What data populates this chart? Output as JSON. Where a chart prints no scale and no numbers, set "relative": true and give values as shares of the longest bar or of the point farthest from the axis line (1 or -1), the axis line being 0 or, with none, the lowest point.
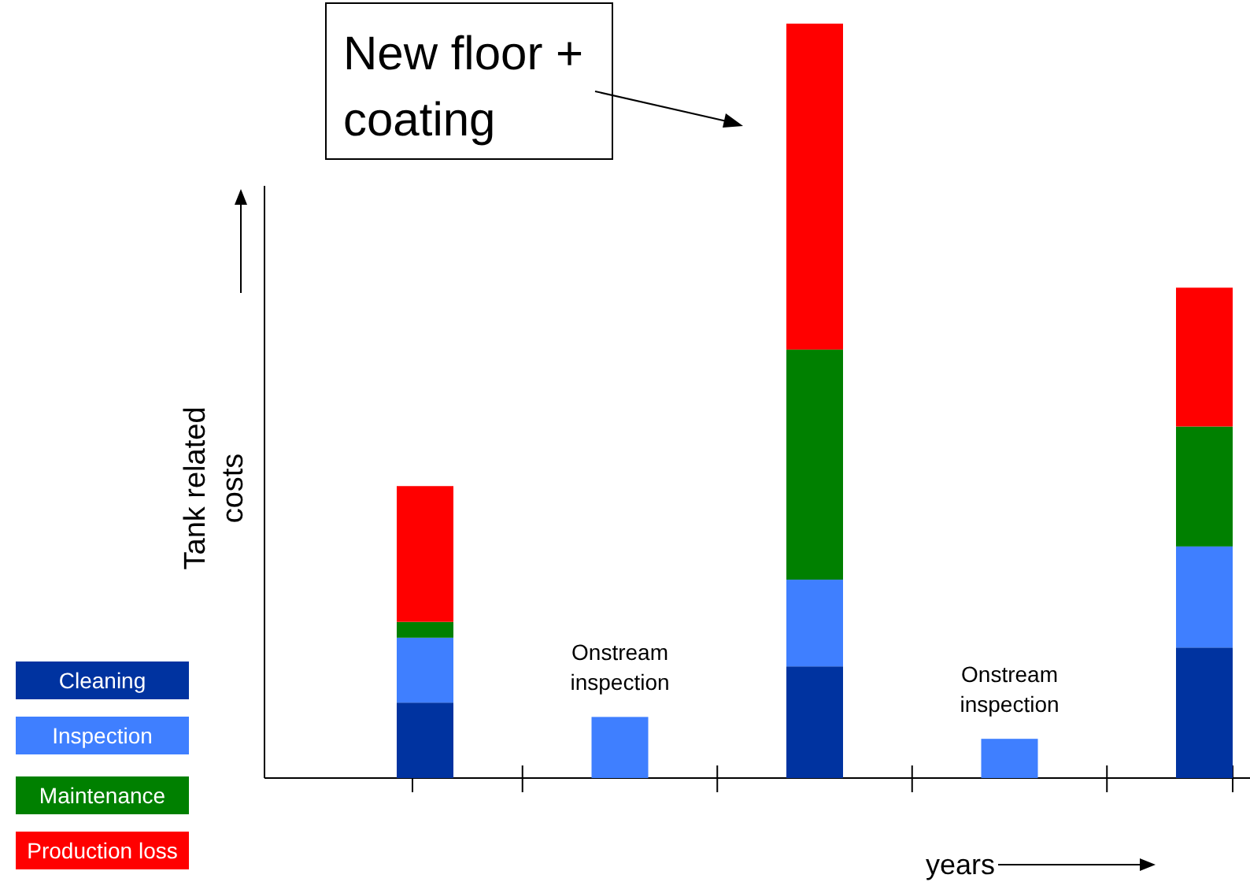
{
  "chart_data": {
    "type": "bar",
    "stacked": true,
    "relative": true,
    "ylabel": "Tank related costs",
    "xlabel": "years",
    "legend": "bottom left",
    "categories": [
      null,
      null,
      null,
      null,
      null
    ],
    "series": [
      {
        "name": "Cleaning",
        "color": "#0033a0",
        "values": [
          0.1,
          null,
          0.148,
          null,
          0.173
        ]
      },
      {
        "name": "Inspection",
        "color": "#3f7fff",
        "values": [
          0.086,
          0.081,
          0.115,
          0.052,
          0.134
        ]
      },
      {
        "name": "Maintenance",
        "color": "#008000",
        "values": [
          0.021,
          null,
          0.305,
          null,
          0.159
        ]
      },
      {
        "name": "Production loss",
        "color": "#ff0000",
        "values": [
          0.18,
          null,
          0.432,
          null,
          0.184
        ]
      }
    ],
    "annotations": [
      "New floor + coating",
      "Onstream inspection",
      "Onstream inspection"
    ]
  }
}
